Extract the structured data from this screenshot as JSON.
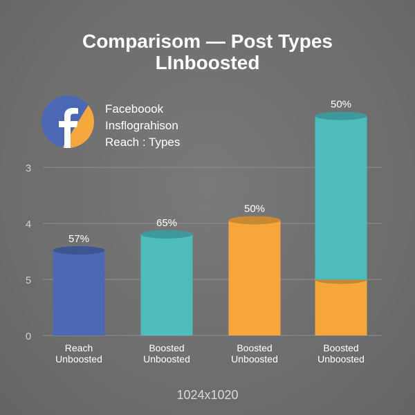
{
  "chart_data": {
    "type": "bar",
    "title_lines": [
      "Comparisom — Post Types",
      "LInboosted"
    ],
    "legend": {
      "lines": [
        "Faceboook",
        "Insflograhison",
        "Reach : Types"
      ],
      "icon": "facebook-logo-icon"
    },
    "categories": [
      [
        "Reach",
        "Unboosted"
      ],
      [
        "Boosted",
        "Unboosted"
      ],
      [
        "Boosted",
        "Unboosted"
      ],
      [
        "Boosted",
        "Unboosted"
      ]
    ],
    "y_tick_labels": [
      "0",
      "5",
      "4",
      "3"
    ],
    "ylim": [
      0,
      3.08
    ],
    "grid": true,
    "bars": [
      {
        "segments": [
          {
            "value": 1.33,
            "color": "#4a68b3"
          }
        ],
        "label": "57%"
      },
      {
        "segments": [
          {
            "value": 1.58,
            "color": "#4cbcbc"
          }
        ],
        "label": "65%"
      },
      {
        "segments": [
          {
            "value": 1.8,
            "color": "#f5a73b"
          }
        ],
        "label": "50%"
      },
      {
        "segments": [
          {
            "value": 0.87,
            "color": "#f5a73b"
          },
          {
            "value": 2.56,
            "color": "#4cbcbc"
          }
        ],
        "label": "50%"
      }
    ],
    "colors": {
      "blue": "#4a68b3",
      "teal": "#4cbcbc",
      "orange": "#f5a73b",
      "grid": "#8e8e8e",
      "text": "#ffffff",
      "axis_text": "#cfcfcf"
    }
  },
  "footer": "1024x1020"
}
